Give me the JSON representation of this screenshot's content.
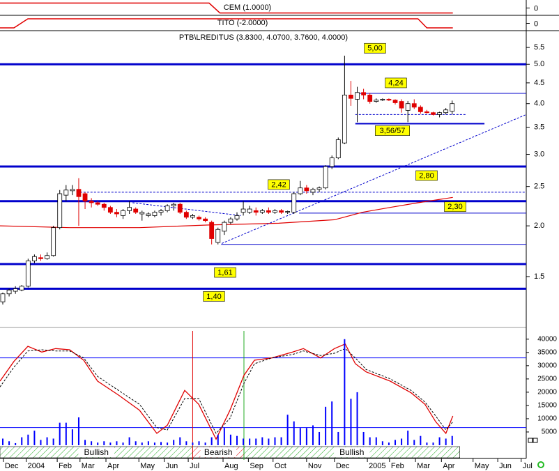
{
  "chart_data": [
    {
      "type": "line",
      "title": "CEM (1.0000)",
      "x": [
        -0.44,
        32.6,
        34.3,
        71.1
      ],
      "values": [
        1,
        1,
        -1,
        -1
      ],
      "color": "#e00000",
      "ylim": [
        -1.2,
        1.2
      ],
      "yticks": [
        0
      ]
    },
    {
      "type": "line",
      "title": "TITO (-2.0000)",
      "x": [
        -0.44,
        1.76,
        3.96,
        65.6,
        67.0,
        71.1
      ],
      "values": [
        -1,
        -1,
        1,
        1,
        -1,
        -1
      ],
      "color": "#e00000",
      "ylim": [
        -1.3,
        1.3
      ],
      "yticks": [
        0
      ]
    },
    {
      "type": "candlestick",
      "title": "PTB\\LREDITUS (3.8300, 4.0700, 3.7600, 4.0000)",
      "log_scale": true,
      "ylim": [
        1.16,
        6.05
      ],
      "yticks": [
        1.5,
        {
          "value": 2,
          "label": "2.0"
        },
        2.5,
        {
          "value": 3,
          "label": "3.0"
        },
        3.5,
        {
          "value": 4,
          "label": "4.0"
        },
        4.5,
        {
          "value": 5,
          "label": "5.0"
        },
        5.5
      ],
      "xlim": [
        -0.44,
        82.7
      ],
      "xticks": [
        {
          "value": 0.1,
          "label": "Dec"
        },
        {
          "value": 3.7,
          "label": "2004"
        },
        {
          "value": 8.6,
          "label": "Feb"
        },
        {
          "value": 12.2,
          "label": "Mar"
        },
        {
          "value": 16.3,
          "label": "Apr"
        },
        {
          "value": 21.5,
          "label": "May"
        },
        {
          "value": 25.5,
          "label": "Jun"
        },
        {
          "value": 29.3,
          "label": "Jul"
        },
        {
          "value": 34.8,
          "label": "Aug"
        },
        {
          "value": 38.8,
          "label": "Sep"
        },
        {
          "value": 42.7,
          "label": "Oct"
        },
        {
          "value": 48.0,
          "label": "Nov"
        },
        {
          "value": 52.4,
          "label": "Dec"
        },
        {
          "value": 57.6,
          "label": "2005"
        },
        {
          "value": 61.1,
          "label": "Feb"
        },
        {
          "value": 65.2,
          "label": "Mar"
        },
        {
          "value": 69.3,
          "label": "Apr"
        },
        {
          "value": 74.3,
          "label": "May"
        },
        {
          "value": 78.2,
          "label": "Jun"
        },
        {
          "value": 81.9,
          "label": "Jul"
        }
      ],
      "up_color": "#ffffff",
      "down_color": "#e00000",
      "x": [
        0,
        1,
        2,
        3,
        4,
        5,
        6,
        7,
        8,
        9,
        10,
        11,
        12,
        13,
        14,
        15,
        16,
        17,
        18,
        19,
        20,
        21,
        22,
        23,
        24,
        25,
        26,
        27,
        28,
        29,
        30,
        31,
        32,
        33,
        34,
        35,
        36,
        37,
        38,
        39,
        40,
        41,
        42,
        43,
        44,
        45,
        46,
        47,
        48,
        49,
        50,
        51,
        52,
        53,
        54,
        55,
        56,
        57,
        58,
        59,
        60,
        61,
        62,
        63,
        64,
        65,
        66,
        67,
        68,
        69,
        70,
        71
      ],
      "open": [
        1.3,
        1.36,
        1.38,
        1.39,
        1.42,
        1.64,
        1.67,
        1.66,
        1.69,
        1.98,
        2.38,
        2.44,
        2.46,
        2.4,
        2.3,
        2.28,
        2.26,
        2.22,
        2.16,
        2.12,
        2.18,
        2.2,
        2.14,
        2.12,
        2.12,
        2.16,
        2.18,
        2.24,
        2.26,
        2.16,
        2.1,
        2.1,
        2.08,
        2.04,
        1.82,
        1.94,
        2.04,
        2.08,
        2.16,
        2.16,
        2.18,
        2.16,
        2.18,
        2.16,
        2.18,
        2.16,
        2.16,
        2.4,
        2.48,
        2.42,
        2.46,
        2.48,
        2.8,
        2.94,
        3.2,
        4.2,
        4.1,
        4.26,
        4.2,
        4.05,
        4.08,
        4.1,
        4.08,
        4.05,
        3.85,
        4.0,
        3.92,
        3.82,
        3.8,
        3.76,
        3.8,
        3.83
      ],
      "high": [
        1.37,
        1.4,
        1.42,
        1.43,
        1.66,
        1.7,
        1.7,
        1.72,
        2.0,
        2.45,
        2.52,
        2.52,
        2.62,
        2.42,
        2.34,
        2.3,
        2.28,
        2.24,
        2.2,
        2.2,
        2.3,
        2.22,
        2.18,
        2.16,
        2.18,
        2.2,
        2.26,
        2.28,
        2.28,
        2.18,
        2.14,
        2.12,
        2.1,
        2.06,
        1.98,
        2.06,
        2.1,
        2.16,
        2.3,
        2.24,
        2.22,
        2.2,
        2.22,
        2.2,
        2.2,
        2.18,
        2.42,
        2.58,
        2.52,
        2.48,
        2.5,
        2.82,
        2.98,
        3.3,
        5.25,
        4.55,
        4.4,
        4.35,
        4.25,
        4.12,
        4.12,
        4.12,
        4.1,
        4.1,
        4.06,
        4.1,
        3.96,
        3.86,
        3.82,
        3.82,
        3.9,
        4.07
      ],
      "low": [
        1.28,
        1.34,
        1.36,
        1.38,
        1.41,
        1.62,
        1.64,
        1.65,
        1.68,
        1.96,
        2.3,
        2.38,
        2.0,
        2.2,
        2.22,
        2.24,
        2.18,
        2.14,
        2.1,
        2.08,
        2.14,
        2.14,
        2.06,
        2.1,
        2.1,
        2.12,
        2.16,
        2.18,
        2.14,
        2.08,
        2.08,
        2.06,
        2.04,
        1.8,
        1.8,
        1.9,
        2.02,
        2.06,
        2.12,
        2.14,
        2.12,
        2.14,
        2.14,
        2.14,
        2.14,
        2.14,
        2.14,
        2.38,
        2.4,
        2.38,
        2.42,
        2.46,
        2.76,
        2.92,
        3.18,
        3.95,
        3.6,
        4.1,
        4.0,
        4.02,
        4.06,
        4.06,
        3.98,
        3.8,
        3.6,
        3.88,
        3.78,
        3.78,
        3.74,
        3.7,
        3.76,
        3.76
      ],
      "close": [
        1.36,
        1.39,
        1.4,
        1.42,
        1.64,
        1.68,
        1.66,
        1.69,
        1.98,
        2.4,
        2.45,
        2.46,
        2.36,
        2.3,
        2.28,
        2.26,
        2.22,
        2.16,
        2.14,
        2.18,
        2.22,
        2.16,
        2.16,
        2.14,
        2.16,
        2.18,
        2.24,
        2.26,
        2.16,
        2.1,
        2.12,
        2.08,
        2.06,
        1.86,
        1.96,
        2.04,
        2.08,
        2.12,
        2.2,
        2.2,
        2.16,
        2.18,
        2.16,
        2.18,
        2.16,
        2.17,
        2.4,
        2.48,
        2.44,
        2.46,
        2.48,
        2.8,
        2.94,
        3.26,
        4.2,
        4.12,
        4.26,
        4.2,
        4.05,
        4.08,
        4.1,
        4.08,
        4.02,
        3.9,
        4.0,
        3.92,
        3.82,
        3.8,
        3.76,
        3.8,
        3.86,
        4.0
      ],
      "moving_average": {
        "color": "#e00000",
        "x": [
          -0.44,
          10.57,
          21.6,
          32.6,
          43.6,
          52.4,
          56.8,
          61.2,
          65.6,
          71.1
        ],
        "values": [
          2.0,
          1.98,
          1.98,
          2.01,
          2.03,
          2.07,
          2.16,
          2.22,
          2.28,
          2.35
        ]
      },
      "trendlines": [
        {
          "color": "#0000cc",
          "x": [
            34.6,
            82.7
          ],
          "values": [
            1.81,
            3.76
          ]
        },
        {
          "color": "#0000cc",
          "x": [
            20.5,
            37.6
          ],
          "values": [
            2.28,
            2.12
          ]
        }
      ],
      "levels": [
        {
          "value": 5.0,
          "label": "5,00",
          "style": "thick",
          "x": [
            -0.44,
            82.7
          ]
        },
        {
          "value": 4.24,
          "label": "4,24",
          "style": "thin",
          "x": [
            55.7,
            82.7
          ]
        },
        {
          "value": 3.76,
          "style": "dashed",
          "x": [
            55.7,
            73.3
          ]
        },
        {
          "value": 3.57,
          "label": "3,56/57",
          "style": "medium",
          "x": [
            55.7,
            76.1
          ]
        },
        {
          "value": 2.8,
          "label": "2,80",
          "style": "thick",
          "x": [
            -0.44,
            82.7
          ]
        },
        {
          "value": 2.42,
          "label": "2,42",
          "style": "dashed",
          "x": [
            12.2,
            82.7
          ]
        },
        {
          "value": 2.3,
          "label": "2,30",
          "style": "thick",
          "x": [
            -0.44,
            82.7
          ]
        },
        {
          "value": 2.15,
          "style": "thin",
          "x": [
            46.8,
            82.7
          ]
        },
        {
          "value": 1.8,
          "style": "thin",
          "x": [
            34.5,
            82.7
          ]
        },
        {
          "value": 1.61,
          "label": "1,61",
          "style": "thick",
          "x": [
            -0.44,
            82.7
          ]
        },
        {
          "value": 1.4,
          "label": "1,40",
          "style": "thick",
          "x": [
            -0.44,
            82.7
          ]
        }
      ]
    },
    {
      "type": "oscillator_volume",
      "ylim": [
        4.8,
        103.2
      ],
      "levels": [
        20,
        80
      ],
      "level_color": "#0000ff",
      "y2lim": [
        0,
        43100
      ],
      "y2ticks": [
        5000,
        10000,
        15000,
        20000,
        25000,
        30000,
        35000,
        40000
      ],
      "series": [
        {
          "color": "#e00000",
          "x": [
            -0.44,
            1.76,
            3.96,
            6.17,
            8.37,
            10.57,
            12.78,
            14.98,
            18.28,
            21.59,
            24.34,
            26.0,
            28.74,
            30.95,
            33.7,
            35.9,
            38.1,
            39.76,
            42.5,
            45.8,
            47.5,
            50.2,
            52.4,
            54.1,
            55.7,
            57.4,
            61.2,
            64.5,
            66.7,
            68.4,
            70.0,
            71.1
          ],
          "values": [
            60,
            77,
            90,
            85,
            88,
            87,
            78,
            60,
            48,
            35,
            15,
            22,
            52,
            40,
            10,
            35,
            65,
            78,
            80,
            85,
            88,
            80,
            88,
            92,
            75,
            68,
            60,
            50,
            40,
            25,
            15,
            30
          ]
        },
        {
          "color": "#000000",
          "style": "dashed",
          "x": [
            -0.44,
            1.76,
            3.96,
            6.17,
            8.37,
            10.57,
            12.78,
            14.98,
            18.28,
            21.59,
            24.34,
            26.0,
            28.74,
            30.95,
            33.7,
            35.9,
            38.1,
            39.76,
            42.5,
            45.8,
            47.5,
            50.2,
            52.4,
            54.1,
            55.7,
            57.4,
            61.2,
            64.5,
            66.7,
            68.4,
            70.0,
            71.1
          ],
          "values": [
            55,
            72,
            86,
            87,
            86,
            86,
            80,
            64,
            52,
            40,
            20,
            18,
            45,
            45,
            15,
            28,
            58,
            75,
            80,
            83,
            86,
            82,
            84,
            88,
            80,
            70,
            62,
            52,
            42,
            30,
            18,
            25
          ]
        },
        {
          "color": "#0000ff",
          "axis": "y2",
          "values": [
            2500,
            1500,
            800,
            3000,
            4000,
            5500,
            2000,
            3000,
            2500,
            8500,
            8500,
            6000,
            10500,
            2000,
            1500,
            1000,
            1500,
            1000,
            1500,
            1000,
            3000,
            1500,
            1000,
            1500,
            1000,
            1200,
            1000,
            2000,
            3000,
            1500,
            1000,
            1500,
            1000,
            3000,
            4000,
            6500,
            4000,
            3500,
            2500,
            2500,
            2500,
            3000,
            2500,
            3000,
            3000,
            11500,
            9000,
            6500,
            6500,
            7500,
            5000,
            14500,
            16500,
            5000,
            40000,
            17500,
            20000,
            5000,
            3000,
            3000,
            1500,
            1000,
            2000,
            2500,
            5500,
            2000,
            3500,
            1000,
            1000,
            3000,
            2500,
            3500
          ]
        }
      ],
      "signals": [
        {
          "label": "Bullish",
          "color": "#22aa22",
          "x": [
            -0.44,
            30.0
          ]
        },
        {
          "label": "Bearish",
          "color": "#e00000",
          "x": [
            30.0,
            38.1
          ]
        },
        {
          "label": "Bullish",
          "color": "#22aa22",
          "x": [
            38.1,
            72.2
          ]
        }
      ]
    }
  ]
}
